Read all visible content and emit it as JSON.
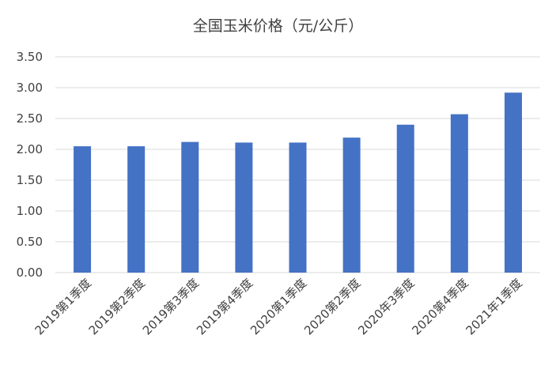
{
  "chart_data": {
    "type": "bar",
    "title": "全国玉米价格（元/公斤）",
    "categories": [
      "2019第1季度",
      "2019第2季度",
      "2019第3季度",
      "2019第4季度",
      "2020第1季度",
      "2020第2季度",
      "2020年3季度",
      "2020第4季度",
      "2021年1季度"
    ],
    "values": [
      2.05,
      2.05,
      2.12,
      2.11,
      2.11,
      2.19,
      2.4,
      2.57,
      2.92
    ],
    "yticks": [
      "0.00",
      "0.50",
      "1.00",
      "1.50",
      "2.00",
      "2.50",
      "3.00",
      "3.50"
    ],
    "ylim": [
      0,
      3.5
    ],
    "grid": true,
    "bar_color": "#4472C4",
    "grid_color": "#D9D9D9",
    "legend": "none"
  }
}
